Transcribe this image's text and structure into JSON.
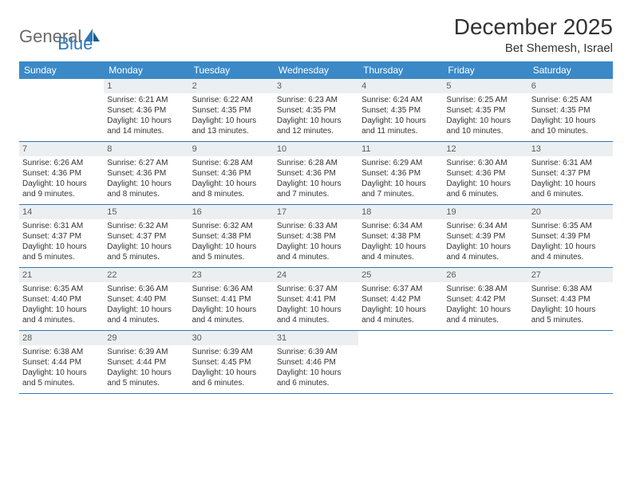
{
  "brand": {
    "general": "General",
    "blue": "Blue"
  },
  "title": "December 2025",
  "location": "Bet Shemesh, Israel",
  "colors": {
    "header_bg": "#3b89c7",
    "rule": "#2f78b8",
    "daynum_bg": "#eceff1",
    "text": "#333333",
    "logo_gray": "#6a6a6a",
    "logo_blue": "#2f78b8"
  },
  "weekdays": [
    "Sunday",
    "Monday",
    "Tuesday",
    "Wednesday",
    "Thursday",
    "Friday",
    "Saturday"
  ],
  "weeks": [
    [
      {
        "n": "",
        "sr": "",
        "ss": "",
        "d1": "",
        "d2": ""
      },
      {
        "n": "1",
        "sr": "Sunrise: 6:21 AM",
        "ss": "Sunset: 4:36 PM",
        "d1": "Daylight: 10 hours",
        "d2": "and 14 minutes."
      },
      {
        "n": "2",
        "sr": "Sunrise: 6:22 AM",
        "ss": "Sunset: 4:35 PM",
        "d1": "Daylight: 10 hours",
        "d2": "and 13 minutes."
      },
      {
        "n": "3",
        "sr": "Sunrise: 6:23 AM",
        "ss": "Sunset: 4:35 PM",
        "d1": "Daylight: 10 hours",
        "d2": "and 12 minutes."
      },
      {
        "n": "4",
        "sr": "Sunrise: 6:24 AM",
        "ss": "Sunset: 4:35 PM",
        "d1": "Daylight: 10 hours",
        "d2": "and 11 minutes."
      },
      {
        "n": "5",
        "sr": "Sunrise: 6:25 AM",
        "ss": "Sunset: 4:35 PM",
        "d1": "Daylight: 10 hours",
        "d2": "and 10 minutes."
      },
      {
        "n": "6",
        "sr": "Sunrise: 6:25 AM",
        "ss": "Sunset: 4:35 PM",
        "d1": "Daylight: 10 hours",
        "d2": "and 10 minutes."
      }
    ],
    [
      {
        "n": "7",
        "sr": "Sunrise: 6:26 AM",
        "ss": "Sunset: 4:36 PM",
        "d1": "Daylight: 10 hours",
        "d2": "and 9 minutes."
      },
      {
        "n": "8",
        "sr": "Sunrise: 6:27 AM",
        "ss": "Sunset: 4:36 PM",
        "d1": "Daylight: 10 hours",
        "d2": "and 8 minutes."
      },
      {
        "n": "9",
        "sr": "Sunrise: 6:28 AM",
        "ss": "Sunset: 4:36 PM",
        "d1": "Daylight: 10 hours",
        "d2": "and 8 minutes."
      },
      {
        "n": "10",
        "sr": "Sunrise: 6:28 AM",
        "ss": "Sunset: 4:36 PM",
        "d1": "Daylight: 10 hours",
        "d2": "and 7 minutes."
      },
      {
        "n": "11",
        "sr": "Sunrise: 6:29 AM",
        "ss": "Sunset: 4:36 PM",
        "d1": "Daylight: 10 hours",
        "d2": "and 7 minutes."
      },
      {
        "n": "12",
        "sr": "Sunrise: 6:30 AM",
        "ss": "Sunset: 4:36 PM",
        "d1": "Daylight: 10 hours",
        "d2": "and 6 minutes."
      },
      {
        "n": "13",
        "sr": "Sunrise: 6:31 AM",
        "ss": "Sunset: 4:37 PM",
        "d1": "Daylight: 10 hours",
        "d2": "and 6 minutes."
      }
    ],
    [
      {
        "n": "14",
        "sr": "Sunrise: 6:31 AM",
        "ss": "Sunset: 4:37 PM",
        "d1": "Daylight: 10 hours",
        "d2": "and 5 minutes."
      },
      {
        "n": "15",
        "sr": "Sunrise: 6:32 AM",
        "ss": "Sunset: 4:37 PM",
        "d1": "Daylight: 10 hours",
        "d2": "and 5 minutes."
      },
      {
        "n": "16",
        "sr": "Sunrise: 6:32 AM",
        "ss": "Sunset: 4:38 PM",
        "d1": "Daylight: 10 hours",
        "d2": "and 5 minutes."
      },
      {
        "n": "17",
        "sr": "Sunrise: 6:33 AM",
        "ss": "Sunset: 4:38 PM",
        "d1": "Daylight: 10 hours",
        "d2": "and 4 minutes."
      },
      {
        "n": "18",
        "sr": "Sunrise: 6:34 AM",
        "ss": "Sunset: 4:38 PM",
        "d1": "Daylight: 10 hours",
        "d2": "and 4 minutes."
      },
      {
        "n": "19",
        "sr": "Sunrise: 6:34 AM",
        "ss": "Sunset: 4:39 PM",
        "d1": "Daylight: 10 hours",
        "d2": "and 4 minutes."
      },
      {
        "n": "20",
        "sr": "Sunrise: 6:35 AM",
        "ss": "Sunset: 4:39 PM",
        "d1": "Daylight: 10 hours",
        "d2": "and 4 minutes."
      }
    ],
    [
      {
        "n": "21",
        "sr": "Sunrise: 6:35 AM",
        "ss": "Sunset: 4:40 PM",
        "d1": "Daylight: 10 hours",
        "d2": "and 4 minutes."
      },
      {
        "n": "22",
        "sr": "Sunrise: 6:36 AM",
        "ss": "Sunset: 4:40 PM",
        "d1": "Daylight: 10 hours",
        "d2": "and 4 minutes."
      },
      {
        "n": "23",
        "sr": "Sunrise: 6:36 AM",
        "ss": "Sunset: 4:41 PM",
        "d1": "Daylight: 10 hours",
        "d2": "and 4 minutes."
      },
      {
        "n": "24",
        "sr": "Sunrise: 6:37 AM",
        "ss": "Sunset: 4:41 PM",
        "d1": "Daylight: 10 hours",
        "d2": "and 4 minutes."
      },
      {
        "n": "25",
        "sr": "Sunrise: 6:37 AM",
        "ss": "Sunset: 4:42 PM",
        "d1": "Daylight: 10 hours",
        "d2": "and 4 minutes."
      },
      {
        "n": "26",
        "sr": "Sunrise: 6:38 AM",
        "ss": "Sunset: 4:42 PM",
        "d1": "Daylight: 10 hours",
        "d2": "and 4 minutes."
      },
      {
        "n": "27",
        "sr": "Sunrise: 6:38 AM",
        "ss": "Sunset: 4:43 PM",
        "d1": "Daylight: 10 hours",
        "d2": "and 5 minutes."
      }
    ],
    [
      {
        "n": "28",
        "sr": "Sunrise: 6:38 AM",
        "ss": "Sunset: 4:44 PM",
        "d1": "Daylight: 10 hours",
        "d2": "and 5 minutes."
      },
      {
        "n": "29",
        "sr": "Sunrise: 6:39 AM",
        "ss": "Sunset: 4:44 PM",
        "d1": "Daylight: 10 hours",
        "d2": "and 5 minutes."
      },
      {
        "n": "30",
        "sr": "Sunrise: 6:39 AM",
        "ss": "Sunset: 4:45 PM",
        "d1": "Daylight: 10 hours",
        "d2": "and 6 minutes."
      },
      {
        "n": "31",
        "sr": "Sunrise: 6:39 AM",
        "ss": "Sunset: 4:46 PM",
        "d1": "Daylight: 10 hours",
        "d2": "and 6 minutes."
      },
      {
        "n": "",
        "sr": "",
        "ss": "",
        "d1": "",
        "d2": ""
      },
      {
        "n": "",
        "sr": "",
        "ss": "",
        "d1": "",
        "d2": ""
      },
      {
        "n": "",
        "sr": "",
        "ss": "",
        "d1": "",
        "d2": ""
      }
    ]
  ]
}
